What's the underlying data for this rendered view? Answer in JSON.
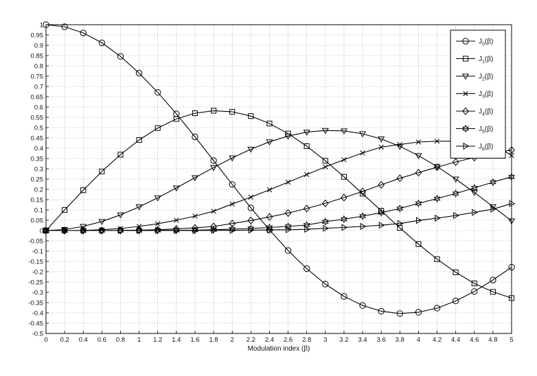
{
  "chart_data": {
    "type": "line",
    "title": "",
    "xlabel": "Modulation index (β)",
    "ylabel": "",
    "xlim": [
      0,
      5
    ],
    "ylim": [
      -0.5,
      1.0
    ],
    "grid": true,
    "legend_position": "top-right",
    "x_ticks": [
      "0",
      "0.2",
      "0.4",
      "0.6",
      "0.8",
      "1",
      "1.2",
      "1.4",
      "1.6",
      "1.8",
      "2",
      "2.2",
      "2.4",
      "2.6",
      "2.8",
      "3",
      "3.2",
      "3.4",
      "3.6",
      "3.8",
      "4",
      "4.2",
      "4.4",
      "4.6",
      "4.8",
      "5"
    ],
    "y_ticks": [
      "-0.5",
      "-0.45",
      "-0.4",
      "-0.35",
      "-0.3",
      "-0.25",
      "-0.2",
      "-0.15",
      "-0.1",
      "-0.05",
      "0",
      "0.05",
      "0.1",
      "0.15",
      "0.2",
      "0.25",
      "0.3",
      "0.35",
      "0.4",
      "0.45",
      "0.5",
      "0.55",
      "0.6",
      "0.65",
      "0.7",
      "0.75",
      "0.8",
      "0.85",
      "0.9",
      "0.95",
      "1"
    ],
    "x": [
      0,
      0.2,
      0.4,
      0.6,
      0.8,
      1.0,
      1.2,
      1.4,
      1.6,
      1.8,
      2.0,
      2.2,
      2.4,
      2.6,
      2.8,
      3.0,
      3.2,
      3.4,
      3.6,
      3.8,
      4.0,
      4.2,
      4.4,
      4.6,
      4.8,
      5.0
    ],
    "series": [
      {
        "name": "J",
        "sub": "0",
        "arg": "(β)",
        "marker": "circle",
        "values": [
          1.0,
          0.99,
          0.96,
          0.912,
          0.846,
          0.765,
          0.671,
          0.567,
          0.455,
          0.34,
          0.224,
          0.11,
          0.003,
          -0.097,
          -0.185,
          -0.26,
          -0.32,
          -0.364,
          -0.392,
          -0.403,
          -0.397,
          -0.377,
          -0.342,
          -0.296,
          -0.24,
          -0.178
        ]
      },
      {
        "name": "J",
        "sub": "1",
        "arg": "(β)",
        "marker": "square",
        "values": [
          0.0,
          0.1,
          0.196,
          0.287,
          0.369,
          0.44,
          0.498,
          0.542,
          0.57,
          0.582,
          0.577,
          0.556,
          0.52,
          0.471,
          0.41,
          0.339,
          0.261,
          0.179,
          0.096,
          0.013,
          -0.066,
          -0.139,
          -0.203,
          -0.257,
          -0.298,
          -0.328
        ]
      },
      {
        "name": "J",
        "sub": "2",
        "arg": "(β)",
        "marker": "triangle-down",
        "values": [
          0.0,
          0.005,
          0.02,
          0.044,
          0.076,
          0.115,
          0.159,
          0.207,
          0.257,
          0.306,
          0.353,
          0.395,
          0.431,
          0.459,
          0.478,
          0.486,
          0.484,
          0.47,
          0.445,
          0.409,
          0.364,
          0.311,
          0.25,
          0.185,
          0.116,
          0.047
        ]
      },
      {
        "name": "J",
        "sub": "3",
        "arg": "(β)",
        "marker": "x",
        "values": [
          0.0,
          0.0,
          0.001,
          0.004,
          0.01,
          0.02,
          0.033,
          0.05,
          0.07,
          0.094,
          0.129,
          0.162,
          0.198,
          0.235,
          0.272,
          0.309,
          0.344,
          0.377,
          0.405,
          0.418,
          0.43,
          0.434,
          0.434,
          0.43,
          0.42,
          0.365
        ]
      },
      {
        "name": "J",
        "sub": "4",
        "arg": "(β)",
        "marker": "diamond",
        "values": [
          0.0,
          0.0,
          0.0,
          0.0,
          0.001,
          0.002,
          0.004,
          0.008,
          0.013,
          0.02,
          0.034,
          0.049,
          0.066,
          0.085,
          0.107,
          0.132,
          0.16,
          0.19,
          0.222,
          0.254,
          0.281,
          0.308,
          0.333,
          0.355,
          0.377,
          0.391
        ]
      },
      {
        "name": "J",
        "sub": "5",
        "arg": "(β)",
        "marker": "star",
        "values": [
          0.0,
          0.0,
          0.0,
          0.0,
          0.0,
          0.0,
          0.001,
          0.001,
          0.002,
          0.004,
          0.007,
          0.01,
          0.015,
          0.02,
          0.027,
          0.043,
          0.055,
          0.07,
          0.087,
          0.107,
          0.132,
          0.155,
          0.18,
          0.207,
          0.235,
          0.261
        ]
      },
      {
        "name": "J",
        "sub": "6",
        "arg": "(β)",
        "marker": "triangle-right",
        "values": [
          0.0,
          0.0,
          0.0,
          0.0,
          0.0,
          0.0,
          0.0,
          0.0,
          0.0,
          0.001,
          0.001,
          0.002,
          0.003,
          0.004,
          0.006,
          0.011,
          0.015,
          0.02,
          0.026,
          0.034,
          0.049,
          0.06,
          0.073,
          0.088,
          0.104,
          0.131
        ]
      }
    ]
  }
}
